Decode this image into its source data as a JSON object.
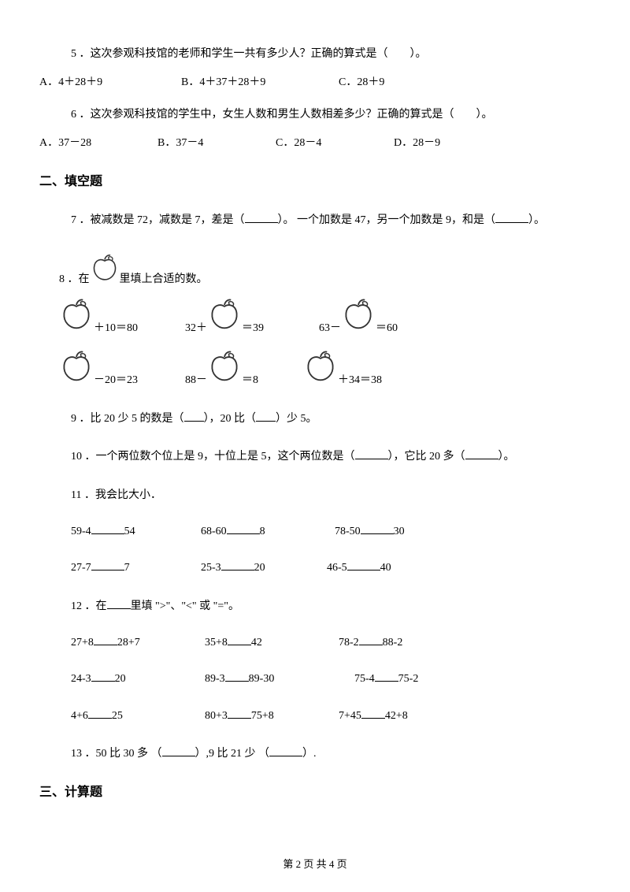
{
  "q5": {
    "text": "5 ．这次参观科技馆的老师和学生一共有多少人？正确的算式是（　　）。",
    "opts": {
      "a": "A．4＋28＋9",
      "b": "B．4＋37＋28＋9",
      "c": "C．28＋9"
    }
  },
  "q6": {
    "text": "6 ．这次参观科技馆的学生中，女生人数和男生人数相差多少？正确的算式是（　　）。",
    "opts": {
      "a": "A．37－28",
      "b": "B．37－4",
      "c": "C．28－4",
      "d": "D．28－9"
    }
  },
  "section2": "二、填空题",
  "q7": {
    "p1": "7 ．被减数是 72，减数是 7，差是（",
    "p2": "）。 一个加数是 47，另一个加数是 9，和是（",
    "p3": "）。"
  },
  "q8": {
    "p1": "8 ．在",
    "p2": " 里填上合适的数。",
    "eq1a": "＋10＝80",
    "eq1b_pre": "32＋",
    "eq1b_post": "＝39",
    "eq1c_pre": "63－",
    "eq1c_post": "＝60",
    "eq2a": "－20＝23",
    "eq2b_pre": "88－",
    "eq2b_post": "＝8",
    "eq2c_post": "＋34＝38"
  },
  "q9": {
    "p1": "9 ．比 20 少 5 的数是（",
    "p2": "），20 比（",
    "p3": "）少 5。"
  },
  "q10": {
    "p1": "10 ．一个两位数个位上是 9，十位上是 5，这个两位数是（",
    "p2": "），它比 20 多（",
    "p3": "）。"
  },
  "q11": {
    "text": "11 ．我会比大小．",
    "r1": {
      "a_pre": "59-4",
      "a_post": "54",
      "b_pre": "68-60",
      "b_post": "8",
      "c_pre": "78-50",
      "c_post": "30"
    },
    "r2": {
      "a_pre": "27-7",
      "a_post": "7",
      "b_pre": "25-3",
      "b_post": "20",
      "c_pre": "46-5",
      "c_post": "40"
    }
  },
  "q12": {
    "p1": "12 ．在",
    "p2": "里填 \">\"、\"<\" 或 \"=\"。",
    "r1": {
      "a_pre": "27+8",
      "a_post": "28+7",
      "b_pre": "35+8",
      "b_post": "42",
      "c_pre": "78-2",
      "c_post": "88-2"
    },
    "r2": {
      "a_pre": "24-3",
      "a_post": "20",
      "b_pre": "89-3",
      "b_post": "89-30",
      "c_pre": "75-4",
      "c_post": "75-2"
    },
    "r3": {
      "a_pre": "4+6",
      "a_post": "25",
      "b_pre": "80+3",
      "b_post": "75+8",
      "c_pre": "7+45",
      "c_post": "42+8"
    }
  },
  "q13": {
    "p1": "13 ．50 比 30 多 （",
    "p2": "）,9 比 21 少 （",
    "p3": "）."
  },
  "section3": "三、计算题",
  "footer": "第 2 页 共 4 页",
  "apple_svg": {
    "stroke": "#333333",
    "fill": "#ffffff"
  }
}
